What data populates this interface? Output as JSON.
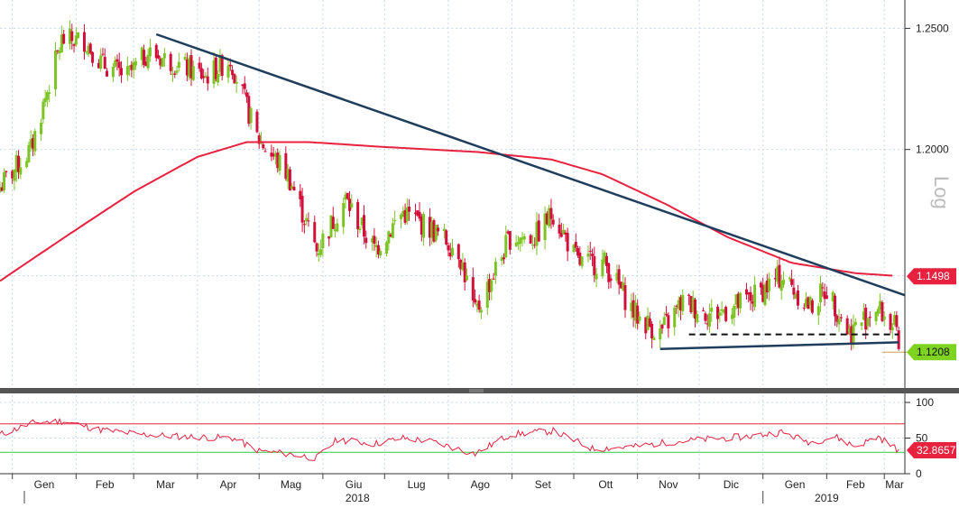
{
  "chart_data": [
    {
      "type": "candlestick",
      "scale": "log",
      "scale_label": "Log",
      "ylim": [
        1.108,
        1.262
      ],
      "y_ticks": [
        "1.2500",
        "1.2000"
      ],
      "x_months": [
        "Gen",
        "Feb",
        "Mar",
        "Apr",
        "Mag",
        "Giu",
        "Lug",
        "Ago",
        "Set",
        "Ott",
        "Nov",
        "Dic",
        "Gen",
        "Feb",
        "Mar"
      ],
      "x_years": [
        "2018",
        "2019"
      ],
      "colors": {
        "up": "#7cc423",
        "down": "#d0103a",
        "ma": "#e8213f",
        "trend": "#1f3d5c",
        "last_tag": "#7ed321",
        "ma_tag": "#e8213f"
      },
      "price_anchors": [
        {
          "date": "2017-12-26",
          "value": 1.185
        },
        {
          "date": "2018-01-10",
          "value": 1.2
        },
        {
          "date": "2018-01-25",
          "value": 1.245
        },
        {
          "date": "2018-02-05",
          "value": 1.245
        },
        {
          "date": "2018-02-14",
          "value": 1.235
        },
        {
          "date": "2018-02-26",
          "value": 1.23
        },
        {
          "date": "2018-03-08",
          "value": 1.24
        },
        {
          "date": "2018-03-22",
          "value": 1.235
        },
        {
          "date": "2018-04-05",
          "value": 1.23
        },
        {
          "date": "2018-04-17",
          "value": 1.237
        },
        {
          "date": "2018-04-30",
          "value": 1.205
        },
        {
          "date": "2018-05-15",
          "value": 1.19
        },
        {
          "date": "2018-05-29",
          "value": 1.16
        },
        {
          "date": "2018-06-12",
          "value": 1.18
        },
        {
          "date": "2018-06-26",
          "value": 1.16
        },
        {
          "date": "2018-07-10",
          "value": 1.175
        },
        {
          "date": "2018-07-24",
          "value": 1.168
        },
        {
          "date": "2018-08-06",
          "value": 1.16
        },
        {
          "date": "2018-08-14",
          "value": 1.135
        },
        {
          "date": "2018-08-31",
          "value": 1.165
        },
        {
          "date": "2018-09-12",
          "value": 1.165
        },
        {
          "date": "2018-09-21",
          "value": 1.175
        },
        {
          "date": "2018-10-03",
          "value": 1.155
        },
        {
          "date": "2018-10-16",
          "value": 1.155
        },
        {
          "date": "2018-10-31",
          "value": 1.135
        },
        {
          "date": "2018-11-12",
          "value": 1.128
        },
        {
          "date": "2018-11-23",
          "value": 1.14
        },
        {
          "date": "2018-12-07",
          "value": 1.135
        },
        {
          "date": "2018-12-24",
          "value": 1.14
        },
        {
          "date": "2019-01-10",
          "value": 1.15
        },
        {
          "date": "2019-01-24",
          "value": 1.138
        },
        {
          "date": "2019-02-01",
          "value": 1.145
        },
        {
          "date": "2019-02-12",
          "value": 1.128
        },
        {
          "date": "2019-02-25",
          "value": 1.138
        },
        {
          "date": "2019-03-06",
          "value": 1.13
        },
        {
          "date": "2019-03-08",
          "value": 1.1208
        }
      ],
      "moving_average": [
        {
          "date": "2017-12-26",
          "value": 1.148
        },
        {
          "date": "2018-02-01",
          "value": 1.168
        },
        {
          "date": "2018-03-01",
          "value": 1.183
        },
        {
          "date": "2018-04-01",
          "value": 1.197
        },
        {
          "date": "2018-04-25",
          "value": 1.203
        },
        {
          "date": "2018-05-25",
          "value": 1.203
        },
        {
          "date": "2018-07-01",
          "value": 1.201
        },
        {
          "date": "2018-08-15",
          "value": 1.199
        },
        {
          "date": "2018-09-20",
          "value": 1.196
        },
        {
          "date": "2018-10-15",
          "value": 1.19
        },
        {
          "date": "2018-11-15",
          "value": 1.178
        },
        {
          "date": "2018-12-15",
          "value": 1.165
        },
        {
          "date": "2019-01-15",
          "value": 1.155
        },
        {
          "date": "2019-02-15",
          "value": 1.151
        },
        {
          "date": "2019-03-06",
          "value": 1.15
        }
      ],
      "trendlines": [
        {
          "style": "solid",
          "from": {
            "date": "2018-03-12",
            "value": 1.2475
          },
          "to": {
            "date": "2019-03-11",
            "value": 1.1425
          }
        },
        {
          "style": "solid",
          "from": {
            "date": "2018-11-12",
            "value": 1.122
          },
          "to": {
            "date": "2019-03-08",
            "value": 1.1245
          }
        },
        {
          "style": "dashed",
          "from": {
            "date": "2018-11-26",
            "value": 1.1275
          },
          "to": {
            "date": "2019-03-08",
            "value": 1.1275
          }
        }
      ],
      "last_value": "1.1208",
      "ma_value": "1.1498"
    },
    {
      "type": "line",
      "indicator": "oscillator",
      "ylim": [
        0,
        100
      ],
      "y_ticks": [
        100,
        50,
        0
      ],
      "levels": [
        {
          "value": 70,
          "color": "#e8213f"
        },
        {
          "value": 30,
          "color": "#2ecc40"
        }
      ],
      "anchors": [
        {
          "date": "2017-12-26",
          "value": 55
        },
        {
          "date": "2018-01-12",
          "value": 72
        },
        {
          "date": "2018-01-26",
          "value": 74
        },
        {
          "date": "2018-02-12",
          "value": 62
        },
        {
          "date": "2018-03-05",
          "value": 55
        },
        {
          "date": "2018-03-26",
          "value": 52
        },
        {
          "date": "2018-04-18",
          "value": 50
        },
        {
          "date": "2018-05-01",
          "value": 32
        },
        {
          "date": "2018-05-15",
          "value": 28
        },
        {
          "date": "2018-05-29",
          "value": 22
        },
        {
          "date": "2018-06-08",
          "value": 48
        },
        {
          "date": "2018-06-26",
          "value": 42
        },
        {
          "date": "2018-07-10",
          "value": 50
        },
        {
          "date": "2018-07-24",
          "value": 45
        },
        {
          "date": "2018-08-14",
          "value": 28
        },
        {
          "date": "2018-08-31",
          "value": 55
        },
        {
          "date": "2018-09-21",
          "value": 60
        },
        {
          "date": "2018-10-10",
          "value": 35
        },
        {
          "date": "2018-10-31",
          "value": 38
        },
        {
          "date": "2018-11-15",
          "value": 44
        },
        {
          "date": "2018-12-03",
          "value": 48
        },
        {
          "date": "2018-12-24",
          "value": 52
        },
        {
          "date": "2019-01-10",
          "value": 58
        },
        {
          "date": "2019-01-24",
          "value": 44
        },
        {
          "date": "2019-02-05",
          "value": 52
        },
        {
          "date": "2019-02-15",
          "value": 38
        },
        {
          "date": "2019-02-26",
          "value": 52
        },
        {
          "date": "2019-03-08",
          "value": 32.8657
        }
      ],
      "last_value": "32.8657"
    }
  ]
}
